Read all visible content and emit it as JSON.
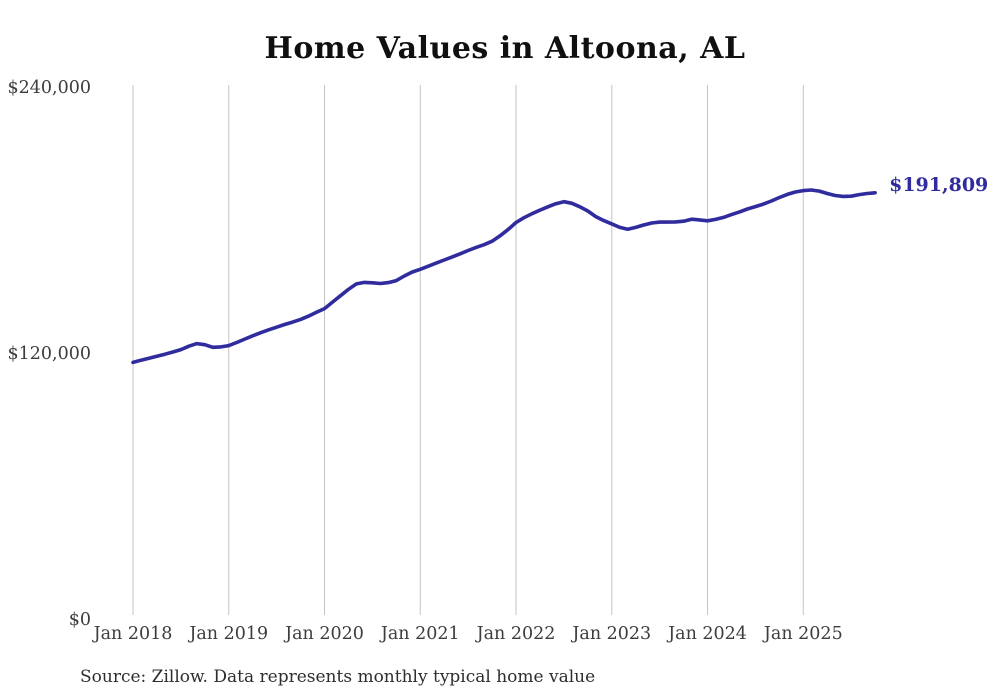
{
  "title": "Home Values in Altoona, AL",
  "source_note": "Source: Zillow. Data represents monthly typical home value",
  "colors": {
    "line": "#312c9e",
    "grid": "#c4c4c4",
    "title": "#101010",
    "tick_label": "#3d3d3d",
    "source_text": "#2d2d2d",
    "background": "#ffffff"
  },
  "chart_data": {
    "type": "line",
    "title": "Home Values in Altoona, AL",
    "xlabel": "",
    "ylabel": "",
    "x_start": "2018-01",
    "x_interval": "month",
    "x_tick_labels": [
      "Jan 2018",
      "Jan 2019",
      "Jan 2020",
      "Jan 2021",
      "Jan 2022",
      "Jan 2023",
      "Jan 2024",
      "Jan 2025"
    ],
    "y_tick_labels": [
      "$0",
      "$120,000",
      "$240,000"
    ],
    "y_tick_values": [
      0,
      120000,
      240000
    ],
    "ylim": [
      0,
      240000
    ],
    "grid": "vertical-only",
    "legend": "none",
    "final_value": 191809,
    "final_value_label": "$191,809",
    "series": [
      {
        "name": "Typical home value",
        "values": [
          115300,
          116300,
          117200,
          118100,
          119000,
          120000,
          121100,
          122600,
          123800,
          123300,
          122100,
          122300,
          122900,
          124300,
          125800,
          127300,
          128700,
          130000,
          131200,
          132400,
          133500,
          134700,
          136200,
          137900,
          139600,
          142500,
          145400,
          148300,
          150700,
          151400,
          151200,
          150900,
          151300,
          152200,
          154300,
          156100,
          157300,
          158700,
          160100,
          161500,
          162900,
          164300,
          165800,
          167200,
          168400,
          170000,
          172400,
          175200,
          178400,
          180600,
          182400,
          184000,
          185500,
          186900,
          187800,
          187100,
          185500,
          183600,
          181100,
          179300,
          177800,
          176200,
          175400,
          176200,
          177300,
          178200,
          178600,
          178600,
          178700,
          179000,
          179900,
          179600,
          179200,
          179800,
          180700,
          182000,
          183200,
          184500,
          185600,
          186700,
          188100,
          189700,
          191100,
          192200,
          192800,
          193100,
          192600,
          191500,
          190600,
          190200,
          190300,
          191000,
          191500,
          191809
        ]
      }
    ]
  }
}
